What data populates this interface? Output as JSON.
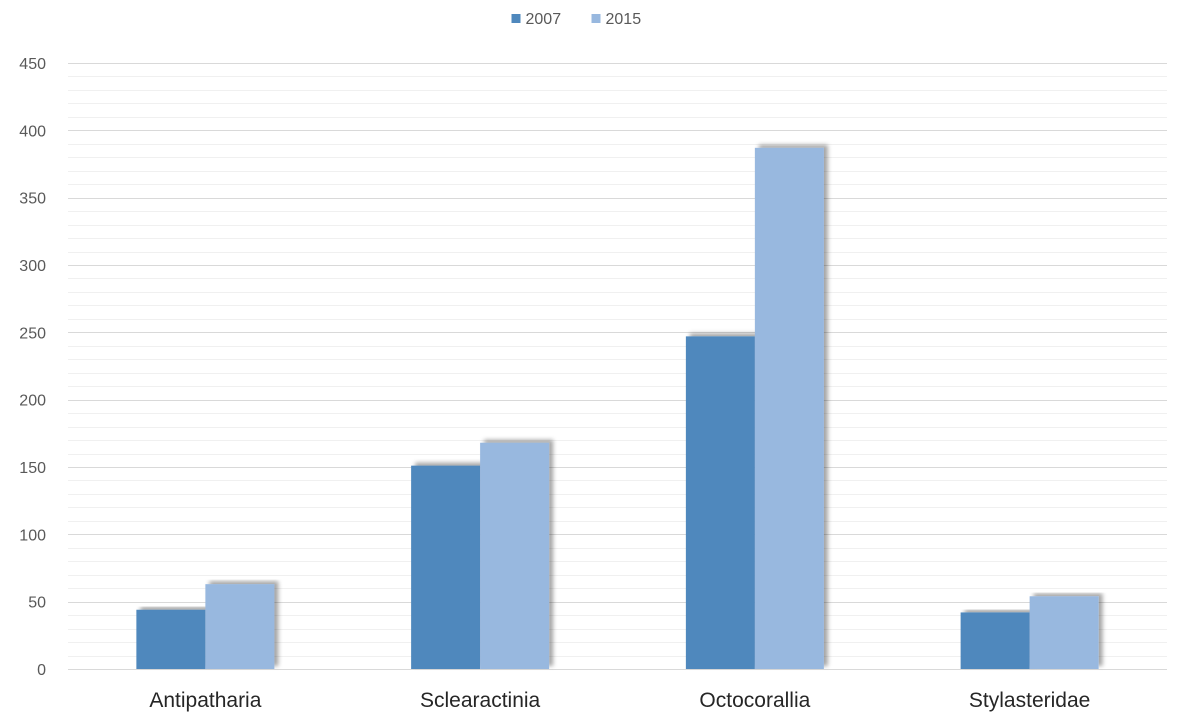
{
  "chart_data": {
    "type": "bar",
    "title": "",
    "xlabel": "",
    "ylabel": "",
    "categories": [
      "Antipatharia",
      "Sclearactinia",
      "Octocorallia",
      "Stylasteridae"
    ],
    "series": [
      {
        "name": "2007",
        "color": "#4f88bd",
        "values": [
          44,
          151,
          247,
          42
        ]
      },
      {
        "name": "2015",
        "color": "#98b8df",
        "values": [
          63,
          168,
          387,
          54
        ]
      }
    ],
    "ylim": [
      0,
      450
    ],
    "yticks": [
      0,
      50,
      100,
      150,
      200,
      250,
      300,
      350,
      400,
      450
    ],
    "grid": true,
    "minor_grid": true,
    "legend_position": "top-center"
  }
}
